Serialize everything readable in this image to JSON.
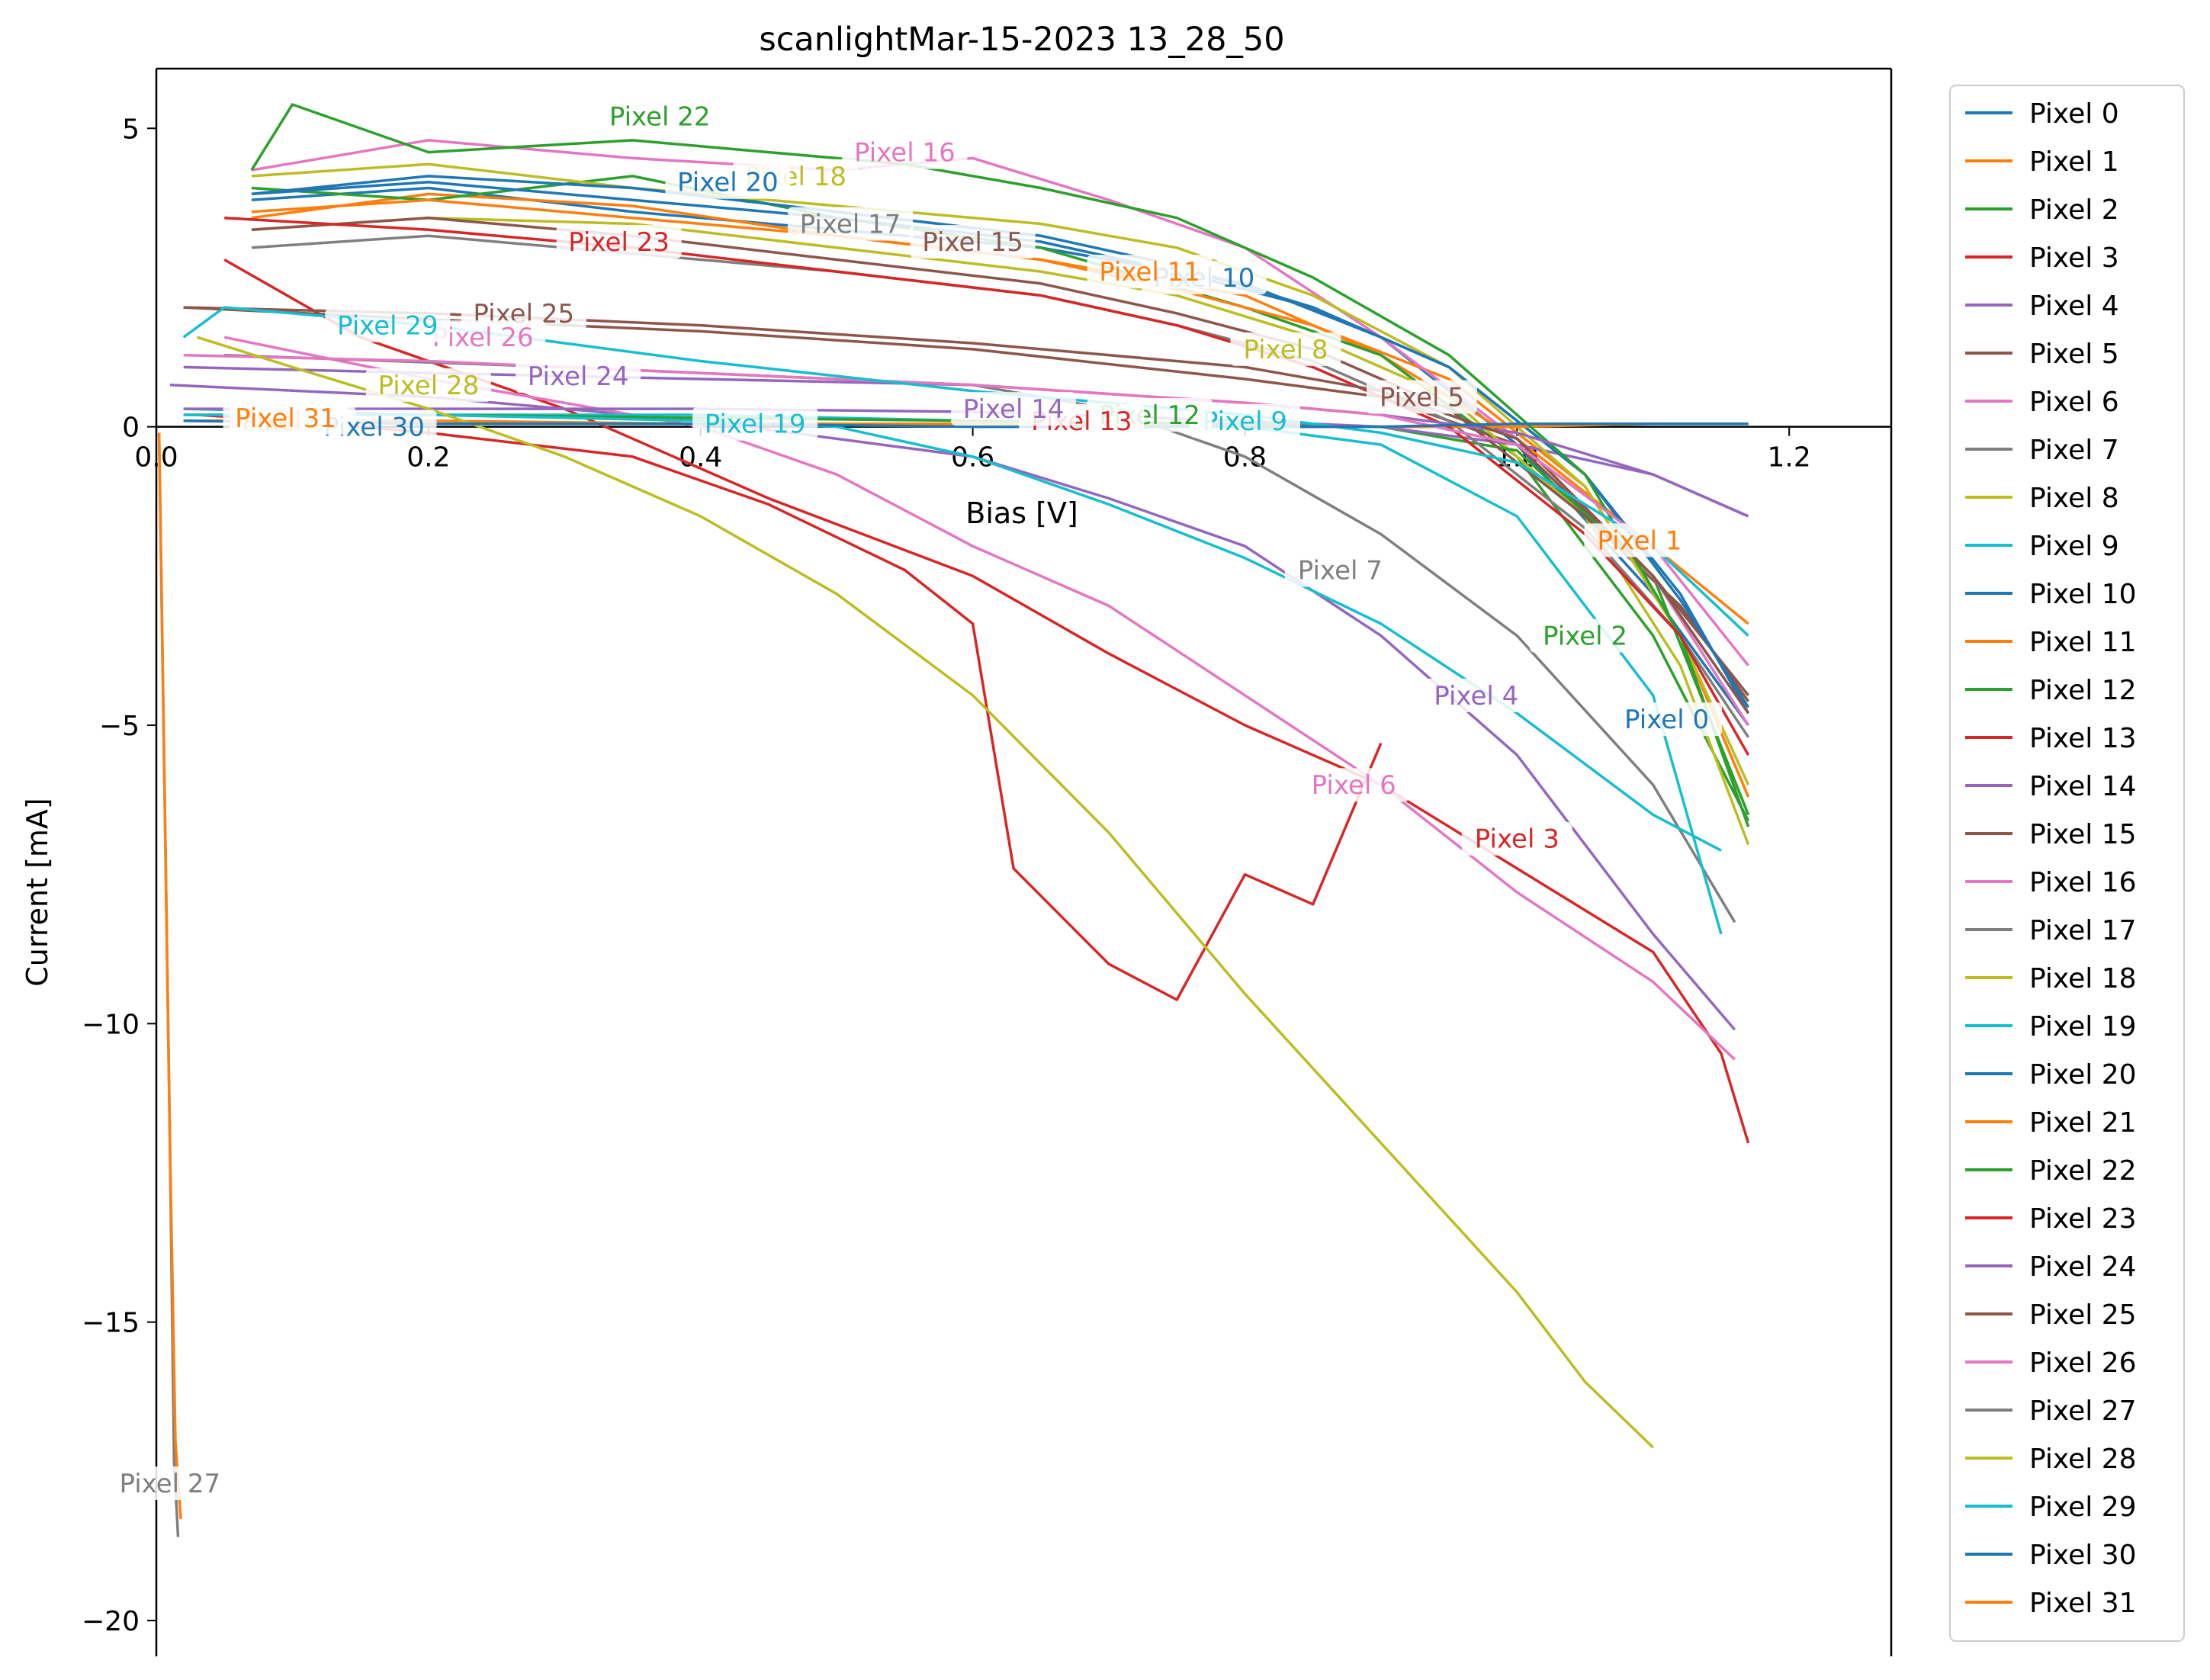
{
  "chart_data": {
    "type": "line",
    "title": "scanlightMar-15-2023 13_28_50",
    "xlabel": "Bias [V]",
    "ylabel": "Current [mA]",
    "xlim": [
      0.0,
      1.275
    ],
    "ylim": [
      -20.6,
      6.0
    ],
    "xticks": [
      0.0,
      0.2,
      0.4,
      0.6,
      0.8,
      1.0,
      1.2
    ],
    "xtick_labels": [
      "0.0",
      "0.2",
      "0.4",
      "0.6",
      "0.8",
      "1.0",
      "1.2"
    ],
    "yticks": [
      5,
      0,
      -5,
      -10,
      -15,
      -20
    ],
    "ytick_labels": [
      "5",
      "0",
      "−5",
      "−10",
      "−15",
      "−20"
    ],
    "grid": false,
    "legend_position": "outside-right",
    "colors": [
      "#1f77b4",
      "#ff7f0e",
      "#2ca02c",
      "#d62728",
      "#9467bd",
      "#8c564b",
      "#e377c2",
      "#7f7f7f",
      "#bcbd22",
      "#17becf"
    ],
    "series": [
      {
        "name": "Pixel 0",
        "label_at": [
          1.11,
          -4.9
        ],
        "x": [
          0.07,
          0.2,
          0.35,
          0.5,
          0.65,
          0.8,
          0.9,
          1.0,
          1.1,
          1.17
        ],
        "y": [
          3.8,
          4.0,
          3.6,
          3.3,
          3.0,
          2.4,
          1.5,
          -0.3,
          -2.8,
          -5.0
        ]
      },
      {
        "name": "Pixel 1",
        "label_at": [
          1.09,
          -1.9
        ],
        "x": [
          0.07,
          0.2,
          0.35,
          0.5,
          0.65,
          0.8,
          0.9,
          1.0,
          1.1,
          1.17
        ],
        "y": [
          3.5,
          3.9,
          3.7,
          3.2,
          2.8,
          2.2,
          1.2,
          -0.2,
          -2.0,
          -3.3
        ]
      },
      {
        "name": "Pixel 2",
        "label_at": [
          1.05,
          -3.5
        ],
        "x": [
          0.07,
          0.2,
          0.35,
          0.5,
          0.65,
          0.8,
          0.9,
          1.0,
          1.1,
          1.17
        ],
        "y": [
          4.0,
          3.8,
          4.2,
          3.5,
          3.0,
          2.0,
          1.2,
          -0.5,
          -3.5,
          -6.6
        ]
      },
      {
        "name": "Pixel 3",
        "label_at": [
          1.0,
          -6.9
        ],
        "x": [
          0.05,
          0.15,
          0.3,
          0.45,
          0.6,
          0.7,
          0.8,
          0.9,
          1.0,
          1.1,
          1.15,
          1.17
        ],
        "y": [
          2.8,
          1.5,
          0.3,
          -1.2,
          -2.5,
          -3.8,
          -5.0,
          -6.0,
          -7.4,
          -8.8,
          -10.5,
          -12.0
        ]
      },
      {
        "name": "Pixel 4",
        "label_at": [
          0.97,
          -4.5
        ],
        "x": [
          0.01,
          0.2,
          0.4,
          0.6,
          0.7,
          0.8,
          0.9,
          1.0,
          1.1,
          1.16
        ],
        "y": [
          0.7,
          0.5,
          0.1,
          -0.5,
          -1.2,
          -2.0,
          -3.5,
          -5.5,
          -8.5,
          -10.1
        ]
      },
      {
        "name": "Pixel 5",
        "label_at": [
          0.93,
          0.5
        ],
        "x": [
          0.02,
          0.2,
          0.4,
          0.6,
          0.8,
          0.9,
          1.0,
          1.1,
          1.17
        ],
        "y": [
          2.0,
          1.8,
          1.6,
          1.3,
          0.8,
          0.5,
          -0.3,
          -2.5,
          -4.5
        ]
      },
      {
        "name": "Pixel 6",
        "label_at": [
          0.88,
          -6.0
        ],
        "x": [
          0.05,
          0.2,
          0.4,
          0.5,
          0.6,
          0.7,
          0.8,
          0.9,
          1.0,
          1.1,
          1.16
        ],
        "y": [
          1.5,
          0.8,
          0.0,
          -0.8,
          -2.0,
          -3.0,
          -4.5,
          -6.0,
          -7.8,
          -9.3,
          -10.6
        ]
      },
      {
        "name": "Pixel 7",
        "label_at": [
          0.87,
          -2.4
        ],
        "x": [
          0.05,
          0.3,
          0.5,
          0.6,
          0.7,
          0.8,
          0.9,
          1.0,
          1.1,
          1.16
        ],
        "y": [
          1.2,
          1.0,
          0.8,
          0.7,
          0.3,
          -0.5,
          -1.8,
          -3.5,
          -6.0,
          -8.3
        ]
      },
      {
        "name": "Pixel 8",
        "label_at": [
          0.83,
          1.3
        ],
        "x": [
          0.07,
          0.2,
          0.35,
          0.5,
          0.65,
          0.75,
          0.85,
          0.95,
          1.05,
          1.12,
          1.17
        ],
        "y": [
          3.3,
          3.5,
          3.4,
          3.0,
          2.6,
          2.2,
          1.5,
          0.5,
          -1.5,
          -4.0,
          -7.0
        ]
      },
      {
        "name": "Pixel 9",
        "label_at": [
          0.8,
          0.1
        ],
        "x": [
          0.02,
          0.2,
          0.4,
          0.6,
          0.8,
          0.9,
          1.0,
          1.1,
          1.15
        ],
        "y": [
          0.3,
          0.2,
          0.2,
          0.1,
          0.0,
          -0.3,
          -1.5,
          -4.5,
          -8.5
        ]
      },
      {
        "name": "Pixel 10",
        "label_at": [
          0.77,
          2.5
        ],
        "x": [
          0.07,
          0.2,
          0.35,
          0.5,
          0.65,
          0.75,
          0.85,
          0.95,
          1.05,
          1.12,
          1.17
        ],
        "y": [
          3.9,
          4.1,
          3.8,
          3.5,
          3.1,
          2.6,
          2.0,
          1.0,
          -0.8,
          -2.8,
          -4.8
        ]
      },
      {
        "name": "Pixel 11",
        "label_at": [
          0.73,
          2.6
        ],
        "x": [
          0.07,
          0.2,
          0.35,
          0.5,
          0.65,
          0.75,
          0.85,
          0.95,
          1.05,
          1.12,
          1.17
        ],
        "y": [
          3.6,
          3.8,
          3.5,
          3.2,
          2.8,
          2.3,
          1.7,
          0.8,
          -1.0,
          -3.5,
          -6.2
        ]
      },
      {
        "name": "Pixel 12",
        "label_at": [
          0.73,
          0.2
        ],
        "x": [
          0.02,
          0.2,
          0.4,
          0.6,
          0.8,
          0.9,
          1.0,
          1.1,
          1.17
        ],
        "y": [
          0.2,
          0.2,
          0.15,
          0.1,
          0.05,
          0.0,
          -0.4,
          -2.5,
          -6.5
        ]
      },
      {
        "name": "Pixel 13",
        "label_at": [
          0.68,
          0.1
        ],
        "x": [
          0.03,
          0.1,
          0.2,
          0.35,
          0.45,
          0.55,
          0.6,
          0.63,
          0.7,
          0.75,
          0.8,
          0.85,
          0.9
        ],
        "y": [
          0.2,
          0.1,
          -0.1,
          -0.5,
          -1.3,
          -2.4,
          -3.3,
          -7.4,
          -9.0,
          -9.6,
          -7.5,
          -8.0,
          -5.3
        ]
      },
      {
        "name": "Pixel 14",
        "label_at": [
          0.63,
          0.3
        ],
        "x": [
          0.02,
          0.2,
          0.4,
          0.6,
          0.8,
          0.9,
          1.0,
          1.1,
          1.17
        ],
        "y": [
          0.3,
          0.3,
          0.3,
          0.25,
          0.1,
          0.0,
          -0.3,
          -0.8,
          -1.5
        ]
      },
      {
        "name": "Pixel 15",
        "label_at": [
          0.6,
          3.1
        ],
        "x": [
          0.07,
          0.2,
          0.35,
          0.5,
          0.65,
          0.75,
          0.85,
          0.95,
          1.05,
          1.12,
          1.17
        ],
        "y": [
          3.3,
          3.5,
          3.2,
          2.8,
          2.4,
          1.9,
          1.3,
          0.3,
          -1.5,
          -3.0,
          -4.6
        ]
      },
      {
        "name": "Pixel 16",
        "label_at": [
          0.55,
          4.6
        ],
        "x": [
          0.07,
          0.2,
          0.35,
          0.5,
          0.6,
          0.7,
          0.8,
          0.9,
          1.0,
          1.1,
          1.17
        ],
        "y": [
          4.3,
          4.8,
          4.5,
          4.3,
          4.5,
          3.8,
          3.0,
          1.5,
          -0.2,
          -2.5,
          -5.0
        ]
      },
      {
        "name": "Pixel 17",
        "label_at": [
          0.51,
          3.4
        ],
        "x": [
          0.07,
          0.2,
          0.35,
          0.5,
          0.65,
          0.75,
          0.85,
          0.95,
          1.05,
          1.12,
          1.17
        ],
        "y": [
          3.0,
          3.2,
          2.9,
          2.6,
          2.2,
          1.7,
          1.1,
          0.1,
          -1.7,
          -3.5,
          -5.2
        ]
      },
      {
        "name": "Pixel 18",
        "label_at": [
          0.47,
          4.2
        ],
        "x": [
          0.07,
          0.2,
          0.35,
          0.5,
          0.65,
          0.75,
          0.85,
          0.95,
          1.05,
          1.12,
          1.17
        ],
        "y": [
          4.2,
          4.4,
          4.0,
          3.7,
          3.4,
          3.0,
          2.2,
          1.0,
          -1.0,
          -3.5,
          -6.0
        ]
      },
      {
        "name": "Pixel 19",
        "label_at": [
          0.44,
          0.05
        ],
        "x": [
          0.02,
          0.2,
          0.4,
          0.5,
          0.6,
          0.7,
          0.8,
          0.9,
          1.0,
          1.1,
          1.15
        ],
        "y": [
          0.2,
          0.2,
          0.1,
          0.0,
          -0.5,
          -1.3,
          -2.2,
          -3.3,
          -4.8,
          -6.5,
          -7.1
        ]
      },
      {
        "name": "Pixel 20",
        "label_at": [
          0.42,
          4.1
        ],
        "x": [
          0.07,
          0.2,
          0.35,
          0.5,
          0.65,
          0.75,
          0.85,
          0.95,
          1.05,
          1.12,
          1.17
        ],
        "y": [
          3.9,
          4.2,
          4.0,
          3.6,
          3.2,
          2.7,
          2.0,
          1.0,
          -0.8,
          -2.9,
          -4.7
        ]
      },
      {
        "name": "Pixel 21",
        "label_at": [
          0.1,
          0.1
        ],
        "x": [
          0.02,
          0.2,
          0.4,
          0.6,
          0.8,
          0.9,
          1.0,
          1.1,
          1.17
        ],
        "y": [
          0.1,
          0.1,
          0.05,
          0.05,
          0.0,
          0.0,
          0.0,
          0.05,
          0.05
        ]
      },
      {
        "name": "Pixel 22",
        "label_at": [
          0.37,
          5.2
        ],
        "x": [
          0.07,
          0.1,
          0.2,
          0.35,
          0.45,
          0.55,
          0.65,
          0.75,
          0.85,
          0.95,
          1.05,
          1.12,
          1.17
        ],
        "y": [
          4.3,
          5.4,
          4.6,
          4.8,
          4.6,
          4.4,
          4.0,
          3.5,
          2.5,
          1.2,
          -0.8,
          -3.5,
          -6.7
        ]
      },
      {
        "name": "Pixel 23",
        "label_at": [
          0.34,
          3.1
        ],
        "x": [
          0.05,
          0.2,
          0.35,
          0.5,
          0.65,
          0.75,
          0.85,
          0.95,
          1.05,
          1.12,
          1.17
        ],
        "y": [
          3.5,
          3.3,
          3.0,
          2.6,
          2.2,
          1.7,
          1.0,
          0.0,
          -1.8,
          -3.5,
          -5.5
        ]
      },
      {
        "name": "Pixel 24",
        "label_at": [
          0.31,
          0.85
        ],
        "x": [
          0.02,
          0.2,
          0.4,
          0.6,
          0.8,
          0.9,
          1.0,
          1.1,
          1.17
        ],
        "y": [
          1.0,
          0.9,
          0.8,
          0.7,
          0.4,
          0.2,
          -0.1,
          -0.8,
          -1.5
        ]
      },
      {
        "name": "Pixel 25",
        "label_at": [
          0.27,
          1.9
        ],
        "x": [
          0.02,
          0.2,
          0.4,
          0.6,
          0.8,
          0.9,
          1.0,
          1.1,
          1.17
        ],
        "y": [
          2.0,
          1.9,
          1.7,
          1.4,
          1.0,
          0.6,
          -0.2,
          -2.5,
          -4.8
        ]
      },
      {
        "name": "Pixel 26",
        "label_at": [
          0.24,
          1.5
        ],
        "x": [
          0.02,
          0.2,
          0.4,
          0.6,
          0.8,
          0.9,
          1.0,
          1.1,
          1.17
        ],
        "y": [
          1.2,
          1.1,
          0.9,
          0.7,
          0.4,
          0.2,
          -0.3,
          -2.0,
          -4.0
        ]
      },
      {
        "name": "Pixel 27",
        "label_at": [
          0.01,
          -17.7
        ],
        "x": [
          0.002,
          0.006,
          0.01,
          0.013,
          0.016
        ],
        "y": [
          -0.1,
          -6.0,
          -12.0,
          -17.3,
          -18.6
        ]
      },
      {
        "name": "Pixel 28",
        "label_at": [
          0.2,
          0.7
        ],
        "x": [
          0.03,
          0.1,
          0.2,
          0.3,
          0.4,
          0.5,
          0.6,
          0.7,
          0.8,
          0.9,
          1.0,
          1.05,
          1.1
        ],
        "y": [
          1.5,
          1.0,
          0.3,
          -0.5,
          -1.5,
          -2.8,
          -4.5,
          -6.8,
          -9.5,
          -12.0,
          -14.5,
          -16.0,
          -17.1
        ]
      },
      {
        "name": "Pixel 29",
        "label_at": [
          0.17,
          1.7
        ],
        "x": [
          0.02,
          0.05,
          0.1,
          0.2,
          0.3,
          0.4,
          0.6,
          0.8,
          0.9,
          1.0,
          1.1,
          1.17
        ],
        "y": [
          1.5,
          2.0,
          1.9,
          1.7,
          1.4,
          1.1,
          0.6,
          0.2,
          -0.1,
          -0.6,
          -2.0,
          -3.5
        ]
      },
      {
        "name": "Pixel 30",
        "label_at": [
          0.16,
          0.0
        ],
        "x": [
          0.02,
          0.2,
          0.4,
          0.6,
          0.8,
          0.9,
          1.0,
          1.1,
          1.17
        ],
        "y": [
          0.1,
          0.05,
          0.05,
          0.0,
          0.0,
          0.0,
          0.05,
          0.05,
          0.05
        ]
      },
      {
        "name": "Pixel 31",
        "label_at": [
          0.095,
          0.15
        ],
        "x": [
          0.002,
          0.006,
          0.01,
          0.014,
          0.018
        ],
        "y": [
          -0.1,
          -6.0,
          -12.0,
          -17.0,
          -18.3
        ]
      }
    ]
  }
}
